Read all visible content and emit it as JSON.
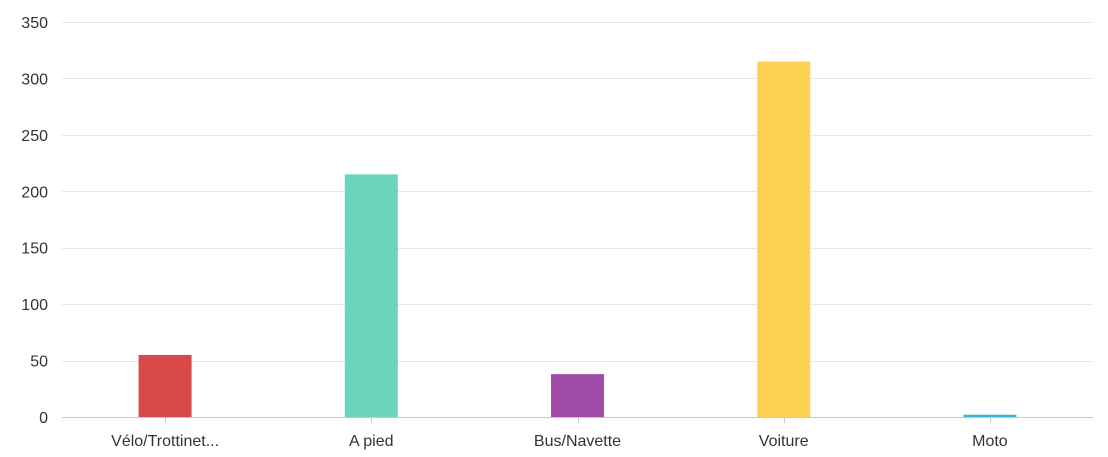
{
  "chart_data": {
    "type": "bar",
    "categories": [
      "Vélo/Trottinet...",
      "A pied",
      "Bus/Navette",
      "Voiture",
      "Moto"
    ],
    "values": [
      55,
      215,
      38,
      315,
      2
    ],
    "colors": [
      "#d9494a",
      "#6bd6bd",
      "#a14ba8",
      "#fdd150",
      "#35b6d9"
    ],
    "ylim": [
      0,
      350
    ],
    "yticks": [
      0,
      50,
      100,
      150,
      200,
      250,
      300,
      350
    ],
    "grid": true,
    "title": "",
    "xlabel": "",
    "ylabel": ""
  }
}
